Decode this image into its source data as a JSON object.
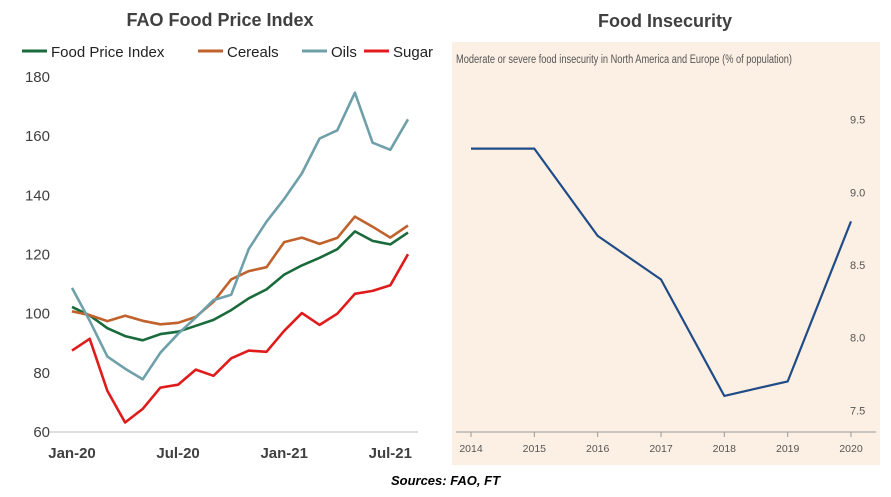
{
  "source": "Sources: FAO, FT",
  "chart_data": [
    {
      "type": "line",
      "title": "FAO Food Price Index",
      "ylim": [
        60,
        180
      ],
      "yticks": [
        60,
        80,
        100,
        120,
        140,
        160,
        180
      ],
      "xtick_labels": [
        "Jan-20",
        "Jul-20",
        "Jan-21",
        "Jul-21"
      ],
      "grid": false,
      "legend_position": "top",
      "x": [
        "Jan-20",
        "Feb-20",
        "Mar-20",
        "Apr-20",
        "May-20",
        "Jun-20",
        "Jul-20",
        "Aug-20",
        "Sep-20",
        "Oct-20",
        "Nov-20",
        "Dec-20",
        "Jan-21",
        "Feb-21",
        "Mar-21",
        "Apr-21",
        "May-21",
        "Jun-21",
        "Jul-21",
        "Aug-21"
      ],
      "series": [
        {
          "name": "Food Price Index",
          "color": "#1a6b3c",
          "values": [
            102.3,
            99.4,
            95.1,
            92.4,
            91.0,
            93.1,
            93.9,
            95.9,
            97.9,
            101.2,
            105.2,
            108.2,
            113.2,
            116.3,
            118.9,
            121.8,
            127.8,
            124.6,
            123.4,
            127.4
          ]
        },
        {
          "name": "Cereals",
          "color": "#c0622c",
          "values": [
            100.8,
            99.5,
            97.5,
            99.3,
            97.6,
            96.4,
            96.9,
            98.9,
            104.0,
            111.6,
            114.4,
            115.7,
            124.2,
            125.7,
            123.6,
            125.6,
            132.8,
            129.4,
            125.7,
            129.8
          ]
        },
        {
          "name": "Oils",
          "color": "#6fa0aa",
          "values": [
            108.7,
            97.6,
            85.5,
            81.4,
            77.8,
            86.8,
            93.2,
            98.7,
            104.6,
            106.4,
            121.9,
            131.1,
            138.8,
            147.4,
            159.2,
            162.0,
            174.7,
            157.8,
            155.4,
            165.7
          ]
        },
        {
          "name": "Sugar",
          "color": "#e01b1b",
          "values": [
            87.5,
            91.5,
            73.9,
            63.2,
            67.8,
            75.0,
            76.0,
            81.1,
            79.0,
            84.9,
            87.5,
            87.1,
            94.2,
            100.2,
            96.2,
            100.0,
            106.7,
            107.7,
            109.6,
            120.1
          ]
        }
      ]
    },
    {
      "type": "line",
      "title": "Food Insecurity",
      "subtitle": "Moderate or severe food insecurity in North America and Europe (% of population)",
      "x": [
        "2014",
        "2015",
        "2016",
        "2017",
        "2018",
        "2019",
        "2020"
      ],
      "ylim": [
        7.4,
        9.6
      ],
      "yticks": [
        "9.5",
        "9.0",
        "8.5",
        "8.0",
        "7.5"
      ],
      "grid": false,
      "background": "#fcf0e4",
      "series": [
        {
          "color": "#1f4b87",
          "values": [
            9.3,
            9.3,
            8.7,
            8.4,
            7.6,
            7.7,
            8.8
          ]
        }
      ]
    }
  ]
}
